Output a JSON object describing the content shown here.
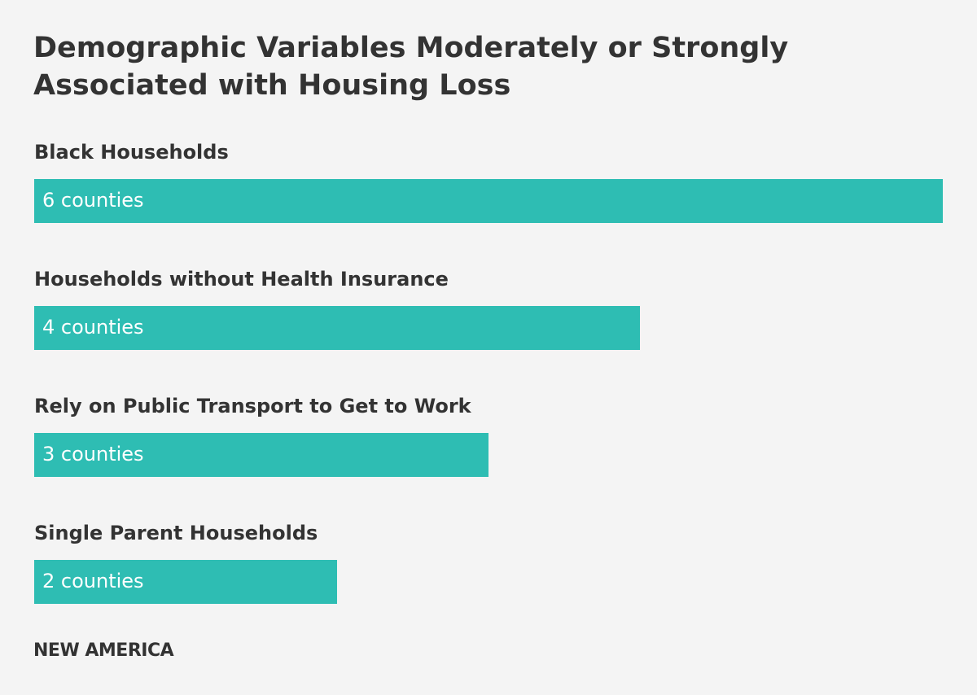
{
  "chart_data": {
    "type": "bar",
    "orientation": "horizontal",
    "title": "Demographic Variables Moderately or Strongly Associated with Housing Loss",
    "categories": [
      "Black Households",
      "Households without Health Insurance",
      "Rely on Public Transport to Get to Work",
      "Single Parent Households"
    ],
    "values": [
      6,
      4,
      3,
      2
    ],
    "value_labels": [
      "6 counties",
      "4 counties",
      "3 counties",
      "2 counties"
    ],
    "xlim": [
      0,
      6
    ],
    "grid": false,
    "legend": "none",
    "bar_color": "#2ebdb3"
  },
  "colors": {
    "background": "#f4f4f4",
    "text": "#333333",
    "bar": "#2ebdb3",
    "bar_text": "#ffffff"
  },
  "footer": {
    "brand": "NEW AMERICA"
  }
}
